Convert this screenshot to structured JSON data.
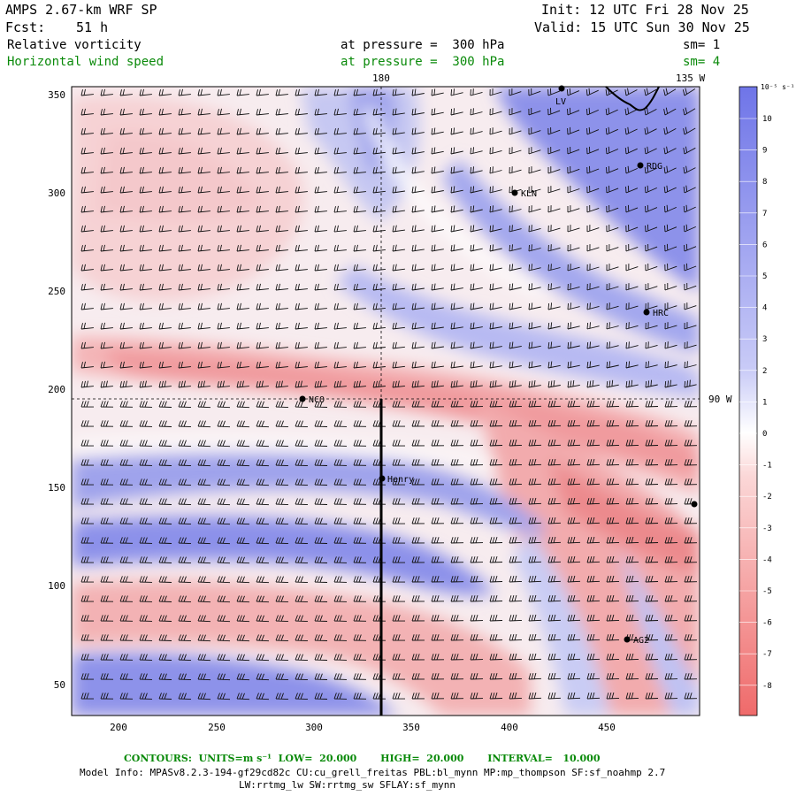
{
  "header": {
    "model": "AMPS 2.67-km WRF SP",
    "forecast_label": "Fcst:",
    "forecast_hours": "51 h",
    "init": "Init: 12 UTC Fri 28 Nov 25",
    "valid": "Valid: 15 UTC Sun 30 Nov 25",
    "field1_name": "Relative vorticity",
    "field1_level": "at pressure =  300 hPa",
    "field1_sm": "sm= 1",
    "field2_name": "Horizontal wind speed",
    "field2_level": "at pressure =  300 hPa",
    "field2_sm": "sm= 4"
  },
  "map": {
    "meridian_label": "180",
    "meridian_135_label": "135 W",
    "parallel_label": "90 W",
    "x_ticks": [
      "200",
      "250",
      "300",
      "350",
      "400",
      "450"
    ],
    "y_ticks": [
      "350",
      "300",
      "250",
      "200",
      "150",
      "100",
      "50"
    ],
    "stations": [
      {
        "name": "LV"
      },
      {
        "name": "RDG"
      },
      {
        "name": "KLN"
      },
      {
        "name": "HRC"
      },
      {
        "name": "NCO"
      },
      {
        "name": "Henry"
      },
      {
        "name": "AG2"
      }
    ]
  },
  "colorbar": {
    "unit": "10⁻⁵ s⁻¹",
    "labels": [
      "10",
      "9",
      "8",
      "7",
      "6",
      "5",
      "4",
      "3",
      "2",
      "1",
      "0",
      "-1",
      "-2",
      "-3",
      "-4",
      "-5",
      "-6",
      "-7",
      "-8"
    ],
    "colors": {
      "strong_pos": "#6f75e8",
      "zero": "#ffffff",
      "strong_neg": "#ef6a6a"
    }
  },
  "footer": {
    "contours": "CONTOURS:  UNITS=m s⁻¹  LOW=  20.000       HIGH=  20.000       INTERVAL=   10.000",
    "model_info": "Model Info: MPASv8.2.3-194-gf29cd82c CU:cu_grell_freitas PBL:bl_mynn MP:mp_thompson SF:sf_noahmp 2.7",
    "model_info2": "LW:rrtmg_lw SW:rrtmg_sw SFLAY:sf_mynn"
  }
}
